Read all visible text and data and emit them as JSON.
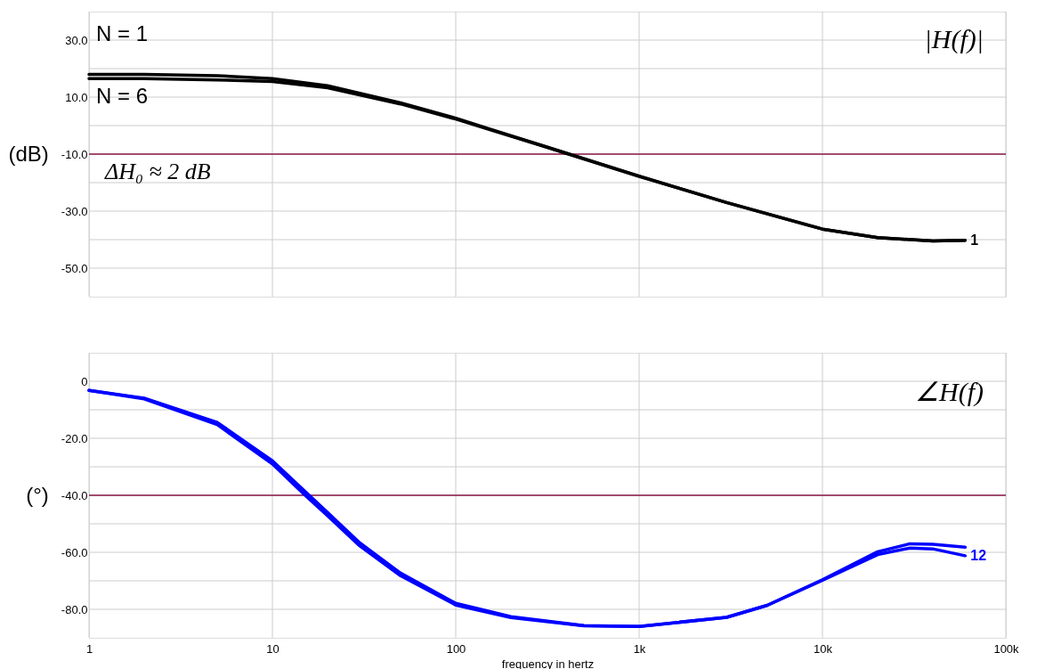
{
  "chart_data": [
    {
      "type": "line",
      "ylabel": "(dB)",
      "log": "x",
      "grid": true,
      "tick_labels": "y",
      "line_style": "solid",
      "xlim": [
        1,
        100000
      ],
      "xticks": [
        1,
        10,
        100,
        1000,
        10000,
        100000
      ],
      "ylim": [
        -60,
        40
      ],
      "yticks": [
        {
          "value": 30,
          "label": "30.0"
        },
        {
          "value": 20,
          "label": null
        },
        {
          "value": 10,
          "label": "10.0"
        },
        {
          "value": 0,
          "label": null
        },
        {
          "value": -10,
          "label": "-10.0"
        },
        {
          "value": -20,
          "label": null
        },
        {
          "value": -30,
          "label": "-30.0"
        },
        {
          "value": -40,
          "label": null
        },
        {
          "value": -50,
          "label": "-50.0"
        }
      ],
      "series": [
        {
          "color": "#000000",
          "x": [
            1,
            2,
            5,
            10,
            20,
            50,
            100,
            155,
            300,
            1000,
            3000,
            10000,
            20000,
            40000,
            60000
          ],
          "values": [
            18,
            18,
            17.5,
            16.5,
            14,
            8,
            2.6,
            -1.3,
            -7.1,
            -17.7,
            -27,
            -36.3,
            -39.3,
            -40.5,
            -40.2
          ]
        },
        {
          "color": "#000000",
          "x": [
            1,
            2,
            5,
            10,
            20,
            50,
            100,
            155,
            300,
            1000,
            3000,
            10000,
            20000,
            40000,
            60000
          ],
          "values": [
            16.5,
            16.5,
            16,
            15.5,
            13.3,
            7.6,
            2.3,
            -1.5,
            -7.2,
            -17.8,
            -27,
            -36.3,
            -39.3,
            -40.5,
            -40.2
          ]
        }
      ],
      "ref_lines": [
        {
          "axis": "y",
          "value": -10,
          "label": null,
          "color": "#8b1a4a"
        }
      ],
      "annotations": [
        "N = 1",
        "N = 6",
        "ΔH₀ ≈ 2 dB",
        "|H(f)|",
        "1"
      ]
    },
    {
      "type": "line",
      "ylabel": "(°)",
      "xlabel": "frequency in hertz",
      "log": "x",
      "grid": true,
      "line_style": "solid",
      "xlim": [
        1,
        100000
      ],
      "xticks": [
        {
          "value": 1,
          "label": "1"
        },
        {
          "value": 10,
          "label": "10"
        },
        {
          "value": 100,
          "label": "100"
        },
        {
          "value": 1000,
          "label": "1k"
        },
        {
          "value": 10000,
          "label": "10k"
        },
        {
          "value": 100000,
          "label": "100k"
        }
      ],
      "ylim": [
        -90,
        10
      ],
      "yticks": [
        0,
        {
          "value": -10,
          "label": null
        },
        {
          "value": -20,
          "label": "-20.0"
        },
        {
          "value": -30,
          "label": null
        },
        {
          "value": -40,
          "label": "-40.0"
        },
        {
          "value": -50,
          "label": null
        },
        {
          "value": -60,
          "label": "-60.0"
        },
        {
          "value": -70,
          "label": null
        },
        {
          "value": -80,
          "label": "-80.0"
        }
      ],
      "series": [
        {
          "color": "#0000ff",
          "x": [
            1,
            2,
            5,
            10,
            15,
            20,
            30,
            50,
            100,
            200,
            500,
            1000,
            3000,
            5000,
            10000,
            20000,
            30000,
            40000,
            60000
          ],
          "values": [
            -3.2,
            -5.9,
            -14.4,
            -27.9,
            -38.5,
            -46,
            -56.7,
            -67.3,
            -77.9,
            -82.6,
            -85.7,
            -86,
            -82.8,
            -78.6,
            -69.6,
            -59.8,
            -57,
            -57.2,
            -58.2
          ]
        },
        {
          "color": "#0000ff",
          "x": [
            1,
            2,
            5,
            10,
            15,
            20,
            30,
            50,
            100,
            200,
            500,
            1000,
            3000,
            5000,
            10000,
            20000,
            30000,
            40000,
            60000
          ],
          "values": [
            -3.2,
            -6.2,
            -15.2,
            -29,
            -39.8,
            -47.2,
            -57.8,
            -68.2,
            -78.5,
            -82.9,
            -85.8,
            -86,
            -82.8,
            -78.6,
            -69.8,
            -60.8,
            -58.5,
            -58.8,
            -61.2
          ]
        }
      ],
      "ref_lines": [
        {
          "axis": "y",
          "value": -40,
          "label": null,
          "color": "#8b1a4a"
        }
      ],
      "annotations": [
        "∠H(f)",
        "12"
      ]
    }
  ]
}
